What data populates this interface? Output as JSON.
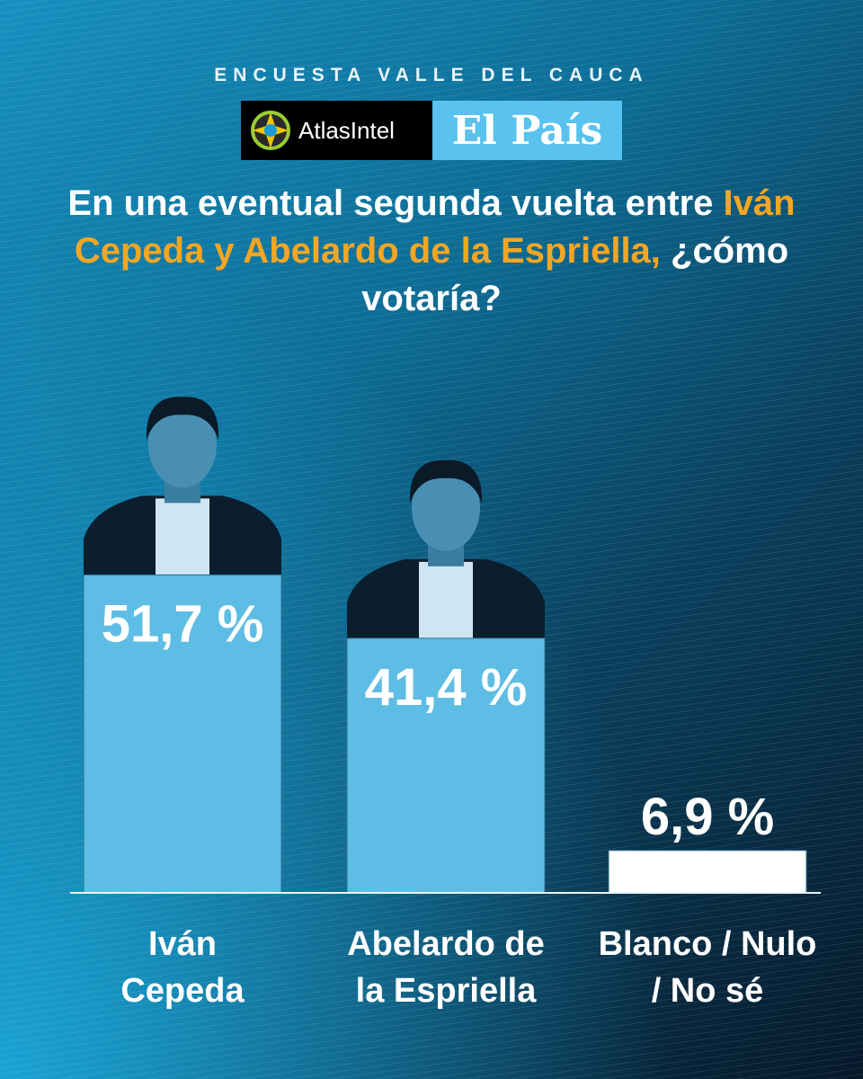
{
  "header": {
    "kicker": "ENCUESTA VALLE DEL CAUCA",
    "logo_atlas": "AtlasIntel",
    "logo_elpais": "El País"
  },
  "question": {
    "part1": "En una eventual segunda vuelta entre ",
    "highlight": "Iván Cepeda y Abelardo de la Espriella,",
    "part2": " ¿cómo votaría?"
  },
  "colors": {
    "bar": "#5ebde4",
    "bar_other": "#ffffff",
    "highlight": "#f5a623",
    "text": "#ffffff"
  },
  "chart_data": {
    "type": "bar",
    "categories": [
      [
        "Iván",
        "Cepeda"
      ],
      [
        "Abelardo de",
        "la Espriella"
      ],
      [
        "Blanco / Nulo",
        "/ No sé"
      ]
    ],
    "values": [
      51.7,
      41.4,
      6.9
    ],
    "value_labels": [
      "51,7 %",
      "41,4 %",
      "6,9 %"
    ],
    "photos": [
      "Iván Cepeda",
      "Abelardo de la Espriella",
      ""
    ]
  }
}
